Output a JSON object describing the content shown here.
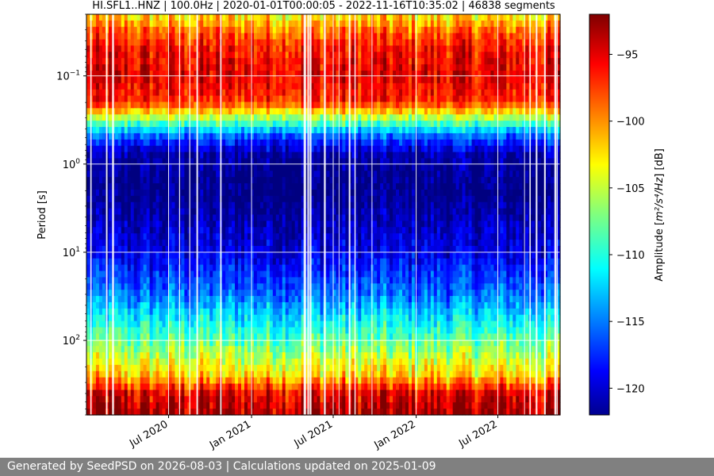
{
  "chart_data": {
    "type": "heatmap",
    "title": "HI.SFL1..HNZ | 100.0Hz | 2020-01-01T00:00:05 - 2022-11-16T10:35:02 | 46838 segments",
    "xlabel": "",
    "ylabel": "Period [s]",
    "y_scale": "log",
    "y_inverted": true,
    "xlim": [
      "2020-01-01",
      "2022-11-16"
    ],
    "ylim": [
      0.02,
      700
    ],
    "x_ticks": [
      {
        "date": "2020-07-01",
        "label": "Jul 2020"
      },
      {
        "date": "2021-01-01",
        "label": "Jan 2021"
      },
      {
        "date": "2021-07-01",
        "label": "Jul 2021"
      },
      {
        "date": "2022-01-01",
        "label": "Jan 2022"
      },
      {
        "date": "2022-07-01",
        "label": "Jul 2022"
      }
    ],
    "y_ticks": [
      {
        "value": 0.1,
        "base": "10",
        "exp": "−1"
      },
      {
        "value": 1,
        "base": "10",
        "exp": "0"
      },
      {
        "value": 10,
        "base": "10",
        "exp": "1"
      },
      {
        "value": 100,
        "base": "10",
        "exp": "2"
      }
    ],
    "grid": true,
    "colormap": "jet",
    "colorbar": {
      "label": "Amplitude [m²/s⁴/Hz] [dB]",
      "label_main": "Amplitude [",
      "label_math": "m²/s⁴/Hz",
      "label_end": "] [dB]",
      "range": [
        -122,
        -92
      ],
      "ticks": [
        {
          "value": -95,
          "label": "−95"
        },
        {
          "value": -100,
          "label": "−100"
        },
        {
          "value": -105,
          "label": "−105"
        },
        {
          "value": -110,
          "label": "−110"
        },
        {
          "value": -115,
          "label": "−115"
        },
        {
          "value": -120,
          "label": "−120"
        }
      ]
    },
    "mean_profile": [
      {
        "period": 0.02,
        "db": -103
      },
      {
        "period": 0.03,
        "db": -99
      },
      {
        "period": 0.05,
        "db": -96
      },
      {
        "period": 0.1,
        "db": -95
      },
      {
        "period": 0.2,
        "db": -97
      },
      {
        "period": 0.35,
        "db": -109
      },
      {
        "period": 0.5,
        "db": -116
      },
      {
        "period": 0.8,
        "db": -121
      },
      {
        "period": 2,
        "db": -122
      },
      {
        "period": 10,
        "db": -119
      },
      {
        "period": 30,
        "db": -115
      },
      {
        "period": 100,
        "db": -108
      },
      {
        "period": 250,
        "db": -102
      },
      {
        "period": 400,
        "db": -95
      },
      {
        "period": 700,
        "db": -93
      }
    ]
  },
  "footer": {
    "text": "Generated by SeedPSD on 2026-08-03 | Calculations updated on 2025-01-09"
  }
}
